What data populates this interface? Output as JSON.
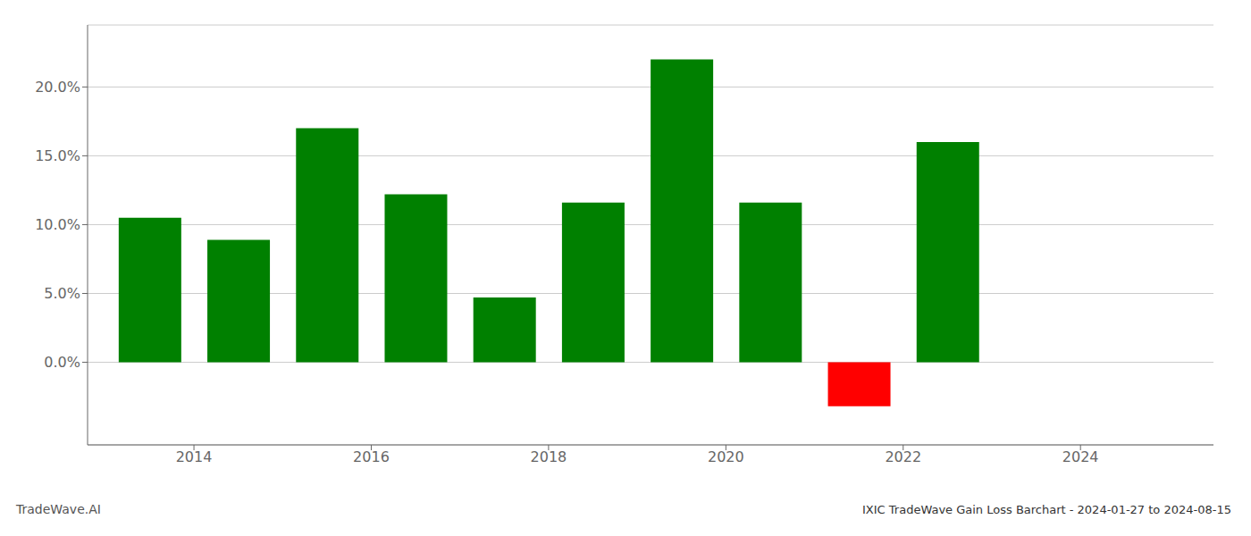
{
  "chart_data": {
    "type": "bar",
    "title": "IXIC TradeWave Gain Loss Barchart - 2024-01-27 to 2024-08-15",
    "annotation": "TradeWave.AI",
    "x": [
      2013.5,
      2014.5,
      2015.5,
      2016.5,
      2017.5,
      2018.5,
      2019.5,
      2020.5,
      2021.5,
      2022.5
    ],
    "values": [
      0.105,
      0.089,
      0.17,
      0.122,
      0.047,
      0.116,
      0.22,
      0.116,
      -0.032,
      0.16
    ],
    "colors": [
      "#008000",
      "#008000",
      "#008000",
      "#008000",
      "#008000",
      "#008000",
      "#008000",
      "#008000",
      "#ff0000",
      "#008000"
    ],
    "xlim": [
      2012.8,
      2025.5
    ],
    "xticks": [
      2014,
      2016,
      2018,
      2020,
      2022,
      2024
    ],
    "ylim": [
      -0.06,
      0.245
    ],
    "yticks": [
      {
        "value": 0.0,
        "label": "0.0%"
      },
      {
        "value": 0.05,
        "label": "5.0%"
      },
      {
        "value": 0.1,
        "label": "10.0%"
      },
      {
        "value": 0.15,
        "label": "15.0%"
      },
      {
        "value": 0.2,
        "label": "20.0%"
      }
    ],
    "grid": "y"
  }
}
